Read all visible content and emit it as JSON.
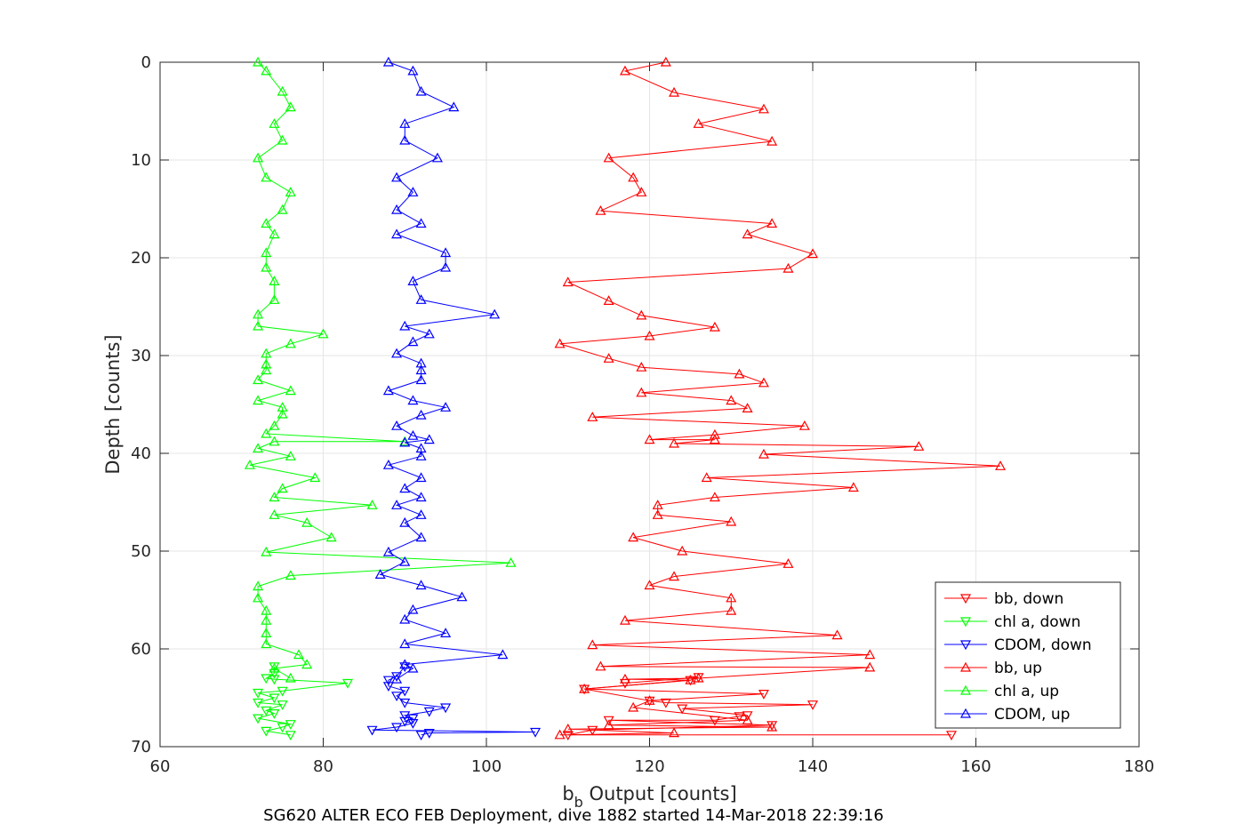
{
  "chart_data": {
    "type": "line",
    "xlabel_main": "b",
    "xlabel_sub": "b",
    "xlabel_rest": " Output [counts]",
    "ylabel": "Depth [counts]",
    "caption": "SG620 ALTER ECO FEB Deployment, dive 1882 started 14-Mar-2018 22:39:16",
    "xlim": [
      60,
      180
    ],
    "ylim": [
      0,
      70
    ],
    "y_reversed": true,
    "grid": true,
    "legend_position": "bottom-right",
    "x_ticks": [
      "60",
      "80",
      "100",
      "120",
      "140",
      "160",
      "180"
    ],
    "y_ticks": [
      "0",
      "10",
      "20",
      "30",
      "40",
      "50",
      "60",
      "70"
    ],
    "x_tick_values": [
      60,
      80,
      100,
      120,
      140,
      160,
      180
    ],
    "y_tick_values": [
      0,
      10,
      20,
      30,
      40,
      50,
      60,
      70
    ],
    "series": [
      {
        "name": "bb, down",
        "color": "#ff0000",
        "marker": "triangle-down",
        "points": [
          [
            157,
            68.8
          ],
          [
            110,
            68.8
          ],
          [
            113,
            68.3
          ],
          [
            135,
            67.8
          ],
          [
            115,
            67.3
          ],
          [
            128,
            67.3
          ],
          [
            131,
            66.9
          ],
          [
            132,
            66.8
          ],
          [
            124,
            66.1
          ],
          [
            140,
            65.7
          ],
          [
            122,
            65.5
          ],
          [
            120,
            65.3
          ],
          [
            134,
            64.6
          ],
          [
            112,
            64.1
          ],
          [
            125,
            63.2
          ],
          [
            126,
            62.9
          ],
          [
            117,
            63.5
          ]
        ]
      },
      {
        "name": "chl a, down",
        "color": "#00ff00",
        "marker": "triangle-down",
        "points": [
          [
            76,
            68.8
          ],
          [
            73,
            68.4
          ],
          [
            75,
            68.0
          ],
          [
            76,
            67.7
          ],
          [
            72,
            67.1
          ],
          [
            74,
            66.6
          ],
          [
            73,
            66.3
          ],
          [
            75,
            65.7
          ],
          [
            72,
            65.5
          ],
          [
            74,
            65.0
          ],
          [
            72,
            64.5
          ],
          [
            75,
            64.3
          ],
          [
            83,
            63.5
          ],
          [
            74,
            63.1
          ],
          [
            73,
            63.0
          ],
          [
            74,
            62.5
          ],
          [
            74,
            61.8
          ]
        ]
      },
      {
        "name": "CDOM, down",
        "color": "#0000ff",
        "marker": "triangle-down",
        "points": [
          [
            92,
            68.8
          ],
          [
            93,
            68.6
          ],
          [
            106,
            68.5
          ],
          [
            86,
            68.3
          ],
          [
            89,
            68.0
          ],
          [
            91,
            67.6
          ],
          [
            90,
            67.4
          ],
          [
            91,
            67.1
          ],
          [
            90,
            66.8
          ],
          [
            93,
            66.4
          ],
          [
            95,
            66.0
          ],
          [
            90,
            65.5
          ],
          [
            89,
            64.8
          ],
          [
            90,
            64.3
          ],
          [
            88,
            63.8
          ],
          [
            88,
            63.2
          ],
          [
            89,
            62.8
          ],
          [
            90,
            61.8
          ]
        ]
      },
      {
        "name": "bb, up",
        "color": "#ff0000",
        "marker": "triangle-up",
        "points": [
          [
            122,
            0
          ],
          [
            117,
            0.9
          ],
          [
            123,
            3.1
          ],
          [
            134,
            4.8
          ],
          [
            126,
            6.3
          ],
          [
            135,
            8.1
          ],
          [
            115,
            9.8
          ],
          [
            118,
            11.8
          ],
          [
            119,
            13.3
          ],
          [
            114,
            15.2
          ],
          [
            135,
            16.5
          ],
          [
            132,
            17.6
          ],
          [
            140,
            19.6
          ],
          [
            137,
            21.1
          ],
          [
            110,
            22.5
          ],
          [
            115,
            24.4
          ],
          [
            119,
            25.9
          ],
          [
            128,
            27.1
          ],
          [
            120,
            28.0
          ],
          [
            109,
            28.8
          ],
          [
            115,
            30.3
          ],
          [
            119,
            31.2
          ],
          [
            131,
            31.9
          ],
          [
            134,
            32.8
          ],
          [
            119,
            33.8
          ],
          [
            130,
            34.6
          ],
          [
            132,
            35.4
          ],
          [
            113,
            36.3
          ],
          [
            139,
            37.2
          ],
          [
            128,
            38.1
          ],
          [
            120,
            38.6
          ],
          [
            128,
            38.6
          ],
          [
            123,
            39.0
          ],
          [
            153,
            39.3
          ],
          [
            134,
            40.1
          ],
          [
            163,
            41.3
          ],
          [
            127,
            42.5
          ],
          [
            145,
            43.5
          ],
          [
            128,
            44.5
          ],
          [
            121,
            45.3
          ],
          [
            121,
            46.3
          ],
          [
            130,
            47.0
          ],
          [
            118,
            48.6
          ],
          [
            124,
            50.0
          ],
          [
            137,
            51.3
          ],
          [
            123,
            52.6
          ],
          [
            120,
            53.5
          ],
          [
            130,
            54.8
          ],
          [
            130,
            56.1
          ],
          [
            117,
            57.1
          ],
          [
            143,
            58.6
          ],
          [
            113,
            59.6
          ],
          [
            147,
            60.6
          ],
          [
            114,
            61.8
          ],
          [
            147,
            61.9
          ],
          [
            126,
            63.0
          ],
          [
            117,
            63.1
          ],
          [
            125,
            63.2
          ],
          [
            112,
            64.1
          ],
          [
            120,
            65.3
          ],
          [
            118,
            66.0
          ],
          [
            132,
            67.3
          ],
          [
            115,
            67.8
          ],
          [
            135,
            68.0
          ],
          [
            110,
            68.2
          ],
          [
            123,
            68.6
          ],
          [
            109,
            68.8
          ]
        ]
      },
      {
        "name": "chl a, up",
        "color": "#00ff00",
        "marker": "triangle-up",
        "points": [
          [
            72,
            0
          ],
          [
            73,
            0.9
          ],
          [
            75,
            3.0
          ],
          [
            76,
            4.6
          ],
          [
            74,
            6.3
          ],
          [
            75,
            8.0
          ],
          [
            72,
            9.8
          ],
          [
            73,
            11.8
          ],
          [
            76,
            13.3
          ],
          [
            75,
            15.1
          ],
          [
            73,
            16.5
          ],
          [
            74,
            17.6
          ],
          [
            73,
            19.5
          ],
          [
            73,
            21.0
          ],
          [
            74,
            22.4
          ],
          [
            74,
            24.3
          ],
          [
            72,
            25.8
          ],
          [
            72,
            27.0
          ],
          [
            80,
            27.8
          ],
          [
            76,
            28.8
          ],
          [
            73,
            29.8
          ],
          [
            73,
            30.9
          ],
          [
            73,
            31.5
          ],
          [
            72,
            32.5
          ],
          [
            76,
            33.6
          ],
          [
            72,
            34.6
          ],
          [
            75,
            35.3
          ],
          [
            75,
            36.0
          ],
          [
            74,
            37.2
          ],
          [
            73,
            38.0
          ],
          [
            90,
            38.8
          ],
          [
            74,
            38.8
          ],
          [
            72,
            39.5
          ],
          [
            76,
            40.3
          ],
          [
            71,
            41.2
          ],
          [
            79,
            42.5
          ],
          [
            75,
            43.6
          ],
          [
            74,
            44.5
          ],
          [
            86,
            45.3
          ],
          [
            74,
            46.3
          ],
          [
            78,
            47.1
          ],
          [
            81,
            48.6
          ],
          [
            73,
            50.1
          ],
          [
            103,
            51.2
          ],
          [
            76,
            52.5
          ],
          [
            72,
            53.6
          ],
          [
            72,
            54.8
          ],
          [
            73,
            56.1
          ],
          [
            73,
            57.1
          ],
          [
            73,
            58.4
          ],
          [
            73,
            59.5
          ],
          [
            77,
            60.6
          ],
          [
            78,
            61.6
          ],
          [
            74,
            62.0
          ],
          [
            76,
            63.0
          ]
        ]
      },
      {
        "name": "CDOM, up",
        "color": "#0000ff",
        "marker": "triangle-up",
        "points": [
          [
            88,
            0
          ],
          [
            91,
            0.9
          ],
          [
            92,
            3.0
          ],
          [
            96,
            4.6
          ],
          [
            90,
            6.3
          ],
          [
            90,
            8.0
          ],
          [
            94,
            9.8
          ],
          [
            89,
            11.8
          ],
          [
            91,
            13.3
          ],
          [
            89,
            15.1
          ],
          [
            92,
            16.5
          ],
          [
            89,
            17.6
          ],
          [
            95,
            19.5
          ],
          [
            95,
            21.0
          ],
          [
            91,
            22.4
          ],
          [
            92,
            24.3
          ],
          [
            101,
            25.8
          ],
          [
            90,
            27.0
          ],
          [
            93,
            27.8
          ],
          [
            91,
            28.6
          ],
          [
            89,
            29.8
          ],
          [
            92,
            30.8
          ],
          [
            92,
            31.5
          ],
          [
            92,
            32.5
          ],
          [
            88,
            33.6
          ],
          [
            91,
            34.6
          ],
          [
            95,
            35.3
          ],
          [
            92,
            36.1
          ],
          [
            89,
            37.2
          ],
          [
            91,
            38.2
          ],
          [
            93,
            38.6
          ],
          [
            90,
            38.9
          ],
          [
            92,
            39.5
          ],
          [
            92,
            40.3
          ],
          [
            88,
            41.2
          ],
          [
            92,
            42.5
          ],
          [
            90,
            43.6
          ],
          [
            92,
            44.5
          ],
          [
            89,
            45.3
          ],
          [
            92,
            46.3
          ],
          [
            90,
            47.1
          ],
          [
            92,
            48.6
          ],
          [
            88,
            50.1
          ],
          [
            90,
            51.1
          ],
          [
            87,
            52.4
          ],
          [
            92,
            53.5
          ],
          [
            97,
            54.7
          ],
          [
            91,
            56.0
          ],
          [
            90,
            57.0
          ],
          [
            95,
            58.4
          ],
          [
            90,
            59.5
          ],
          [
            102,
            60.6
          ],
          [
            90,
            61.6
          ],
          [
            91,
            62.0
          ],
          [
            89,
            63.1
          ]
        ]
      }
    ]
  }
}
